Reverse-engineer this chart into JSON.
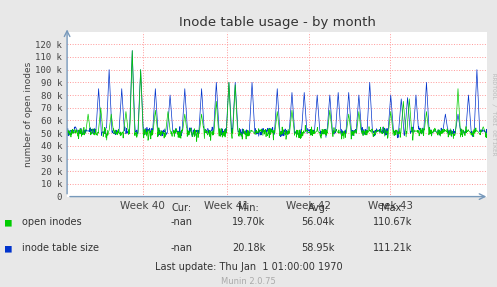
{
  "title": "Inode table usage - by month",
  "ylabel": "number of open inodes",
  "xlabel_ticks": [
    "Week 40",
    "Week 41",
    "Week 42",
    "Week 43"
  ],
  "xlabel_tick_positions": [
    0.18,
    0.38,
    0.575,
    0.77
  ],
  "ylim": [
    0,
    130000
  ],
  "yticks": [
    0,
    10000,
    20000,
    30000,
    40000,
    50000,
    60000,
    70000,
    80000,
    90000,
    100000,
    110000,
    120000
  ],
  "ytick_labels": [
    "0",
    "10 k",
    "20 k",
    "30 k",
    "40 k",
    "50 k",
    "60 k",
    "70 k",
    "80 k",
    "90 k",
    "100 k",
    "110 k",
    "120 k"
  ],
  "bg_color": "#e8e8e8",
  "plot_bg_color": "#ffffff",
  "grid_color": "#ff9999",
  "legend_items": [
    "open inodes",
    "inode table size"
  ],
  "legend_colors": [
    "#00cc00",
    "#0033cc"
  ],
  "stats_header": [
    "Cur:",
    "Min:",
    "Avg:",
    "Max:"
  ],
  "stats_row1_label": "open inodes",
  "stats_row2_label": "inode table size",
  "stats_row1": [
    "-nan",
    "19.70k",
    "56.04k",
    "110.67k"
  ],
  "stats_row2": [
    "-nan",
    "20.18k",
    "58.95k",
    "111.21k"
  ],
  "last_update": "Last update: Thu Jan  1 01:00:00 1970",
  "munin_version": "Munin 2.0.75",
  "rrdtool_text": "RRDTOOL / TOBI OETIKER",
  "base_value": 50000,
  "noise_amplitude": 2000
}
